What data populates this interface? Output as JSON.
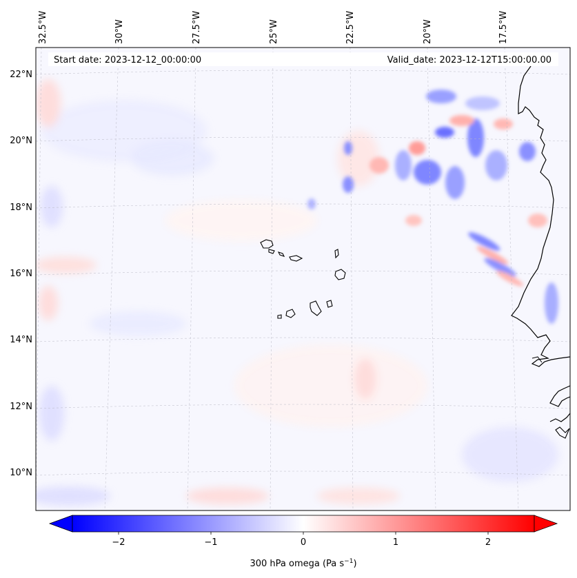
{
  "map": {
    "title_left": "Start date: 2023-12-12_00:00:00",
    "title_right": "Valid_date: 2023-12-12T15:00:00.00",
    "lon_labels": [
      "32.5°W",
      "30°W",
      "27.5°W",
      "25°W",
      "22.5°W",
      "20°W",
      "17.5°W"
    ],
    "lat_labels": [
      "22°N",
      "20°N",
      "18°N",
      "16°N",
      "14°N",
      "12°N",
      "10°N"
    ],
    "features": [
      "cape-verde-islands",
      "west-african-coastline",
      "lat-lon-gridlines"
    ]
  },
  "colorbar": {
    "label": "300 hPa omega (Pa s",
    "label_exp": "−1",
    "label_close": ")",
    "ticks": [
      "−2",
      "−1",
      "0",
      "1",
      "2"
    ],
    "tick_values": [
      -2,
      -1,
      0,
      1,
      2
    ],
    "range": [
      -2.5,
      2.5
    ],
    "colors": {
      "neg": "#0000ff",
      "mid": "#ffffff",
      "pos": "#ff0000"
    }
  }
}
